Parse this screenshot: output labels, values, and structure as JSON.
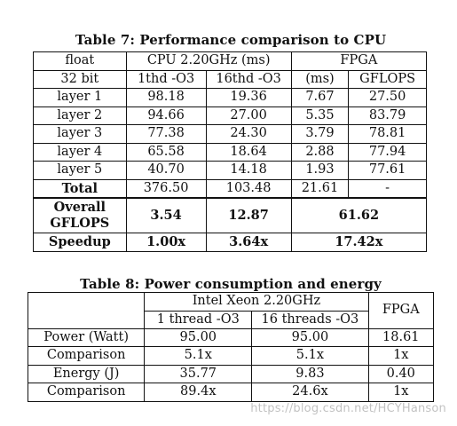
{
  "table7": {
    "caption": "Table 7: Performance comparison to CPU",
    "header1": [
      "float",
      "CPU 2.20GHz (ms)",
      "FPGA"
    ],
    "header2": [
      "32 bit",
      "1thd -O3",
      "16thd -O3",
      "(ms)",
      "GFLOPS"
    ],
    "rows": [
      [
        "layer 1",
        "98.18",
        "19.36",
        "7.67",
        "27.50"
      ],
      [
        "layer 2",
        "94.66",
        "27.00",
        "5.35",
        "83.79"
      ],
      [
        "layer 3",
        "77.38",
        "24.30",
        "3.79",
        "78.81"
      ],
      [
        "layer 4",
        "65.58",
        "18.64",
        "2.88",
        "77.94"
      ],
      [
        "layer 5",
        "40.70",
        "14.18",
        "1.93",
        "77.61"
      ],
      [
        "Total",
        "376.50",
        "103.48",
        "21.61",
        "-"
      ]
    ],
    "overall": {
      "label": "Overall GFLOPS",
      "cpu1": "3.54",
      "cpu16": "12.87",
      "fpga": "61.62"
    },
    "speedup": {
      "label": "Speedup",
      "cpu1": "1.00x",
      "cpu16": "3.64x",
      "fpga": "17.42x"
    }
  },
  "table8": {
    "caption": "Table 8: Power consumption and energy",
    "header1": [
      "Intel Xeon 2.20GHz",
      "FPGA"
    ],
    "header2": [
      "1 thread -O3",
      "16 threads -O3"
    ],
    "rows": [
      [
        "Power (Watt)",
        "95.00",
        "95.00",
        "18.61"
      ],
      [
        "Comparison",
        "5.1x",
        "5.1x",
        "1x"
      ],
      [
        "Energy (J)",
        "35.77",
        "9.83",
        "0.40"
      ],
      [
        "Comparison",
        "89.4x",
        "24.6x",
        "1x"
      ]
    ]
  },
  "watermark": "https://blog.csdn.net/HCYHanson"
}
